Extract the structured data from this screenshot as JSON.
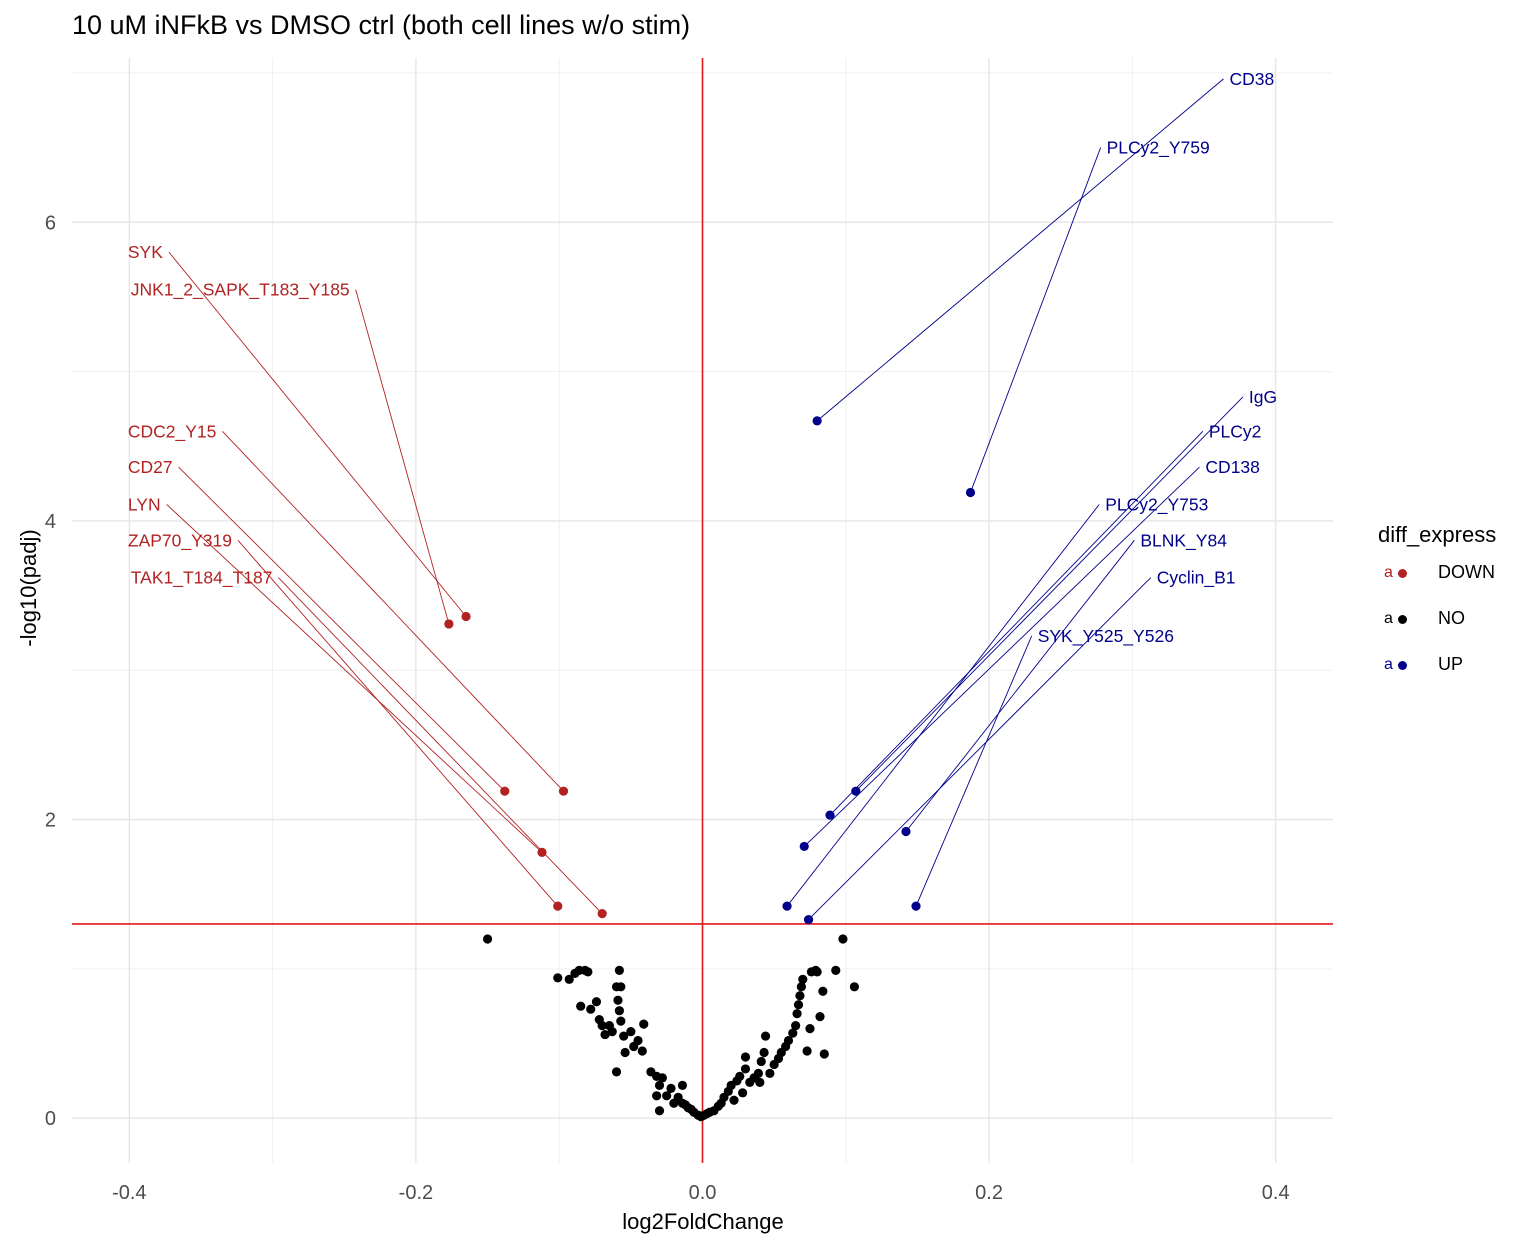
{
  "chart_data": {
    "type": "scatter",
    "title": "10 uM iNFkB vs DMSO ctrl (both cell lines w/o stim)",
    "xlabel": "log2FoldChange",
    "ylabel": "-log10(padj)",
    "xlim": [
      -0.44,
      0.44
    ],
    "ylim": [
      -0.3,
      7.1
    ],
    "x_ticks": [
      -0.4,
      -0.2,
      0.0,
      0.2,
      0.4
    ],
    "x_tick_labels": [
      "-0.4",
      "-0.2",
      "0.0",
      "0.2",
      "0.4"
    ],
    "y_ticks": [
      0,
      2,
      4,
      6
    ],
    "y_tick_labels": [
      "0",
      "2",
      "4",
      "6"
    ],
    "grid": true,
    "ref_lines": {
      "vertical_x": 0.0,
      "horizontal_y": 1.301,
      "color": "#e31a1c"
    },
    "legend": {
      "title": "diff_express",
      "placement": "right",
      "key_glyph": "a",
      "entries": [
        {
          "name": "DOWN",
          "color": "#b22222"
        },
        {
          "name": "NO",
          "color": "#000000"
        },
        {
          "name": "UP",
          "color": "#00008b"
        }
      ]
    },
    "labeled_points": [
      {
        "group": "DOWN",
        "label": "SYK",
        "x": -0.165,
        "y": 3.36,
        "label_x": -0.401,
        "label_y": 5.8
      },
      {
        "group": "DOWN",
        "label": "JNK1_2_SAPK_T183_Y185",
        "x": -0.177,
        "y": 3.31,
        "label_x": -0.399,
        "label_y": 5.55
      },
      {
        "group": "DOWN",
        "label": "CDC2_Y15",
        "x": -0.097,
        "y": 2.19,
        "label_x": -0.401,
        "label_y": 4.6
      },
      {
        "group": "DOWN",
        "label": "CD27",
        "x": -0.138,
        "y": 2.19,
        "label_x": -0.401,
        "label_y": 4.36
      },
      {
        "group": "DOWN",
        "label": "LYN",
        "x": -0.112,
        "y": 1.78,
        "label_x": -0.401,
        "label_y": 4.11
      },
      {
        "group": "DOWN",
        "label": "ZAP70_Y319",
        "x": -0.101,
        "y": 1.42,
        "label_x": -0.401,
        "label_y": 3.87
      },
      {
        "group": "DOWN",
        "label": "TAK1_T184_T187",
        "x": -0.07,
        "y": 1.37,
        "label_x": -0.399,
        "label_y": 3.62
      },
      {
        "group": "UP",
        "label": "CD38",
        "x": 0.08,
        "y": 4.67,
        "label_x": 0.399,
        "label_y": 6.96
      },
      {
        "group": "UP",
        "label": "PLCy2_Y759",
        "x": 0.187,
        "y": 4.19,
        "label_x": 0.354,
        "label_y": 6.5
      },
      {
        "group": "UP",
        "label": "IgG",
        "x": 0.107,
        "y": 2.19,
        "label_x": 0.401,
        "label_y": 4.83
      },
      {
        "group": "UP",
        "label": "PLCy2",
        "x": 0.089,
        "y": 2.03,
        "label_x": 0.39,
        "label_y": 4.6
      },
      {
        "group": "UP",
        "label": "CD138",
        "x": 0.071,
        "y": 1.82,
        "label_x": 0.389,
        "label_y": 4.36
      },
      {
        "group": "UP",
        "label": "PLCy2_Y753",
        "x": 0.059,
        "y": 1.42,
        "label_x": 0.353,
        "label_y": 4.11
      },
      {
        "group": "UP",
        "label": "BLNK_Y84",
        "x": 0.142,
        "y": 1.92,
        "label_x": 0.366,
        "label_y": 3.87
      },
      {
        "group": "UP",
        "label": "Cyclin_B1",
        "x": 0.074,
        "y": 1.33,
        "label_x": 0.372,
        "label_y": 3.62
      },
      {
        "group": "UP",
        "label": "SYK_Y525_Y526",
        "x": 0.149,
        "y": 1.42,
        "label_x": 0.329,
        "label_y": 3.23
      }
    ],
    "no_points": [
      [
        -0.15,
        1.2
      ],
      [
        -0.101,
        0.94
      ],
      [
        -0.093,
        0.93
      ],
      [
        -0.089,
        0.97
      ],
      [
        -0.086,
        0.99
      ],
      [
        -0.082,
        0.99
      ],
      [
        -0.08,
        0.98
      ],
      [
        -0.085,
        0.75
      ],
      [
        -0.078,
        0.73
      ],
      [
        -0.074,
        0.78
      ],
      [
        -0.072,
        0.66
      ],
      [
        -0.07,
        0.62
      ],
      [
        -0.068,
        0.56
      ],
      [
        -0.065,
        0.62
      ],
      [
        -0.063,
        0.58
      ],
      [
        -0.06,
        0.88
      ],
      [
        -0.058,
        0.99
      ],
      [
        -0.057,
        0.88
      ],
      [
        -0.059,
        0.79
      ],
      [
        -0.058,
        0.72
      ],
      [
        -0.057,
        0.65
      ],
      [
        -0.055,
        0.55
      ],
      [
        -0.054,
        0.44
      ],
      [
        -0.05,
        0.58
      ],
      [
        -0.048,
        0.48
      ],
      [
        -0.045,
        0.52
      ],
      [
        -0.042,
        0.45
      ],
      [
        -0.041,
        0.63
      ],
      [
        -0.06,
        0.31
      ],
      [
        -0.036,
        0.31
      ],
      [
        -0.032,
        0.28
      ],
      [
        -0.03,
        0.22
      ],
      [
        -0.032,
        0.15
      ],
      [
        -0.03,
        0.05
      ],
      [
        -0.028,
        0.27
      ],
      [
        -0.025,
        0.15
      ],
      [
        -0.022,
        0.2
      ],
      [
        -0.02,
        0.1
      ],
      [
        -0.017,
        0.14
      ],
      [
        -0.014,
        0.22
      ],
      [
        -0.014,
        0.1
      ],
      [
        -0.012,
        0.09
      ],
      [
        -0.01,
        0.07
      ],
      [
        -0.008,
        0.06
      ],
      [
        -0.006,
        0.04
      ],
      [
        -0.003,
        0.02
      ],
      [
        -0.001,
        0.01
      ],
      [
        0.001,
        0.02
      ],
      [
        0.003,
        0.03
      ],
      [
        0.005,
        0.04
      ],
      [
        0.008,
        0.05
      ],
      [
        0.011,
        0.08
      ],
      [
        0.013,
        0.1
      ],
      [
        0.015,
        0.14
      ],
      [
        0.018,
        0.18
      ],
      [
        0.02,
        0.22
      ],
      [
        0.022,
        0.12
      ],
      [
        0.024,
        0.25
      ],
      [
        0.026,
        0.28
      ],
      [
        0.028,
        0.17
      ],
      [
        0.03,
        0.33
      ],
      [
        0.03,
        0.41
      ],
      [
        0.033,
        0.24
      ],
      [
        0.036,
        0.27
      ],
      [
        0.039,
        0.3
      ],
      [
        0.04,
        0.24
      ],
      [
        0.041,
        0.38
      ],
      [
        0.043,
        0.44
      ],
      [
        0.044,
        0.55
      ],
      [
        0.047,
        0.3
      ],
      [
        0.05,
        0.36
      ],
      [
        0.053,
        0.4
      ],
      [
        0.055,
        0.44
      ],
      [
        0.058,
        0.48
      ],
      [
        0.06,
        0.52
      ],
      [
        0.063,
        0.57
      ],
      [
        0.065,
        0.62
      ],
      [
        0.066,
        0.7
      ],
      [
        0.067,
        0.76
      ],
      [
        0.068,
        0.82
      ],
      [
        0.069,
        0.88
      ],
      [
        0.07,
        0.93
      ],
      [
        0.073,
        0.45
      ],
      [
        0.075,
        0.6
      ],
      [
        0.076,
        0.98
      ],
      [
        0.079,
        0.99
      ],
      [
        0.08,
        0.98
      ],
      [
        0.082,
        0.68
      ],
      [
        0.084,
        0.85
      ],
      [
        0.085,
        0.43
      ],
      [
        0.093,
        0.99
      ],
      [
        0.098,
        1.2
      ],
      [
        0.106,
        0.88
      ]
    ]
  }
}
